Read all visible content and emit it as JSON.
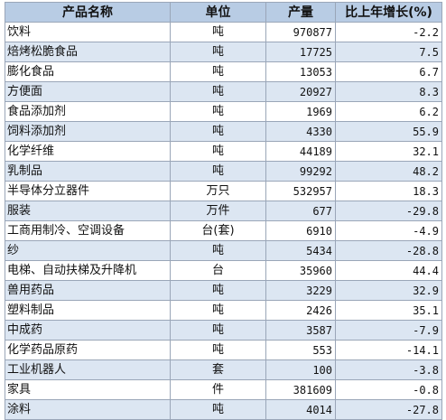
{
  "table": {
    "headers": [
      "产品名称",
      "单位",
      "产量",
      "比上年增长(%)"
    ],
    "rows": [
      [
        "饮料",
        "吨",
        "970877",
        "-2.2"
      ],
      [
        "焙烤松脆食品",
        "吨",
        "17725",
        "7.5"
      ],
      [
        "膨化食品",
        "吨",
        "13053",
        "6.7"
      ],
      [
        "方便面",
        "吨",
        "20927",
        "8.3"
      ],
      [
        "食品添加剂",
        "吨",
        "1969",
        "6.2"
      ],
      [
        "饲料添加剂",
        "吨",
        "4330",
        "55.9"
      ],
      [
        "化学纤维",
        "吨",
        "44189",
        "32.1"
      ],
      [
        "乳制品",
        "吨",
        "99292",
        "48.2"
      ],
      [
        "半导体分立器件",
        "万只",
        "532957",
        "18.3"
      ],
      [
        "服装",
        "万件",
        "677",
        "-29.8"
      ],
      [
        "工商用制冷、空调设备",
        "台(套)",
        "6910",
        "-4.9"
      ],
      [
        "纱",
        "吨",
        "5434",
        "-28.8"
      ],
      [
        "电梯、自动扶梯及升降机",
        "台",
        "35960",
        "44.4"
      ],
      [
        "兽用药品",
        "吨",
        "3229",
        "32.9"
      ],
      [
        "塑料制品",
        "吨",
        "2426",
        "35.1"
      ],
      [
        "中成药",
        "吨",
        "3587",
        "-7.9"
      ],
      [
        "化学药品原药",
        "吨",
        "553",
        "-14.1"
      ],
      [
        "工业机器人",
        "套",
        "100",
        "-3.8"
      ],
      [
        "家具",
        "件",
        "381609",
        "-0.8"
      ],
      [
        "涂料",
        "吨",
        "4014",
        "-27.8"
      ]
    ]
  }
}
